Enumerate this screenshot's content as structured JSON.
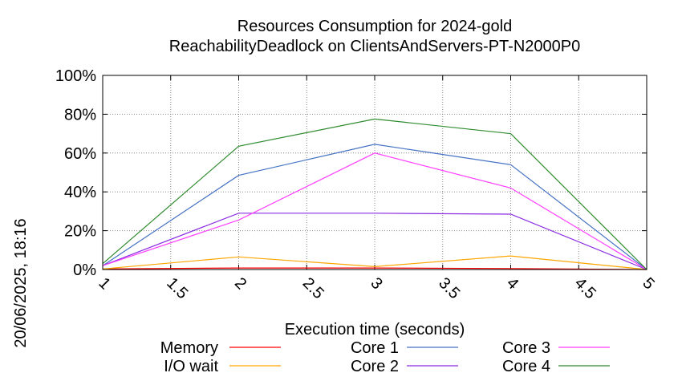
{
  "side_timestamp": "20/06/2025, 18:16",
  "chart_data": {
    "type": "line",
    "title": "Resources Consumption for 2024-gold",
    "subtitle": "ReachabilityDeadlock on ClientsAndServers-PT-N2000P0",
    "xlabel": "Execution time (seconds)",
    "ylabel": "",
    "xlim": [
      1,
      5
    ],
    "ylim": [
      0,
      100
    ],
    "x": [
      1,
      2,
      3,
      4,
      5
    ],
    "x_ticks": [
      "1",
      "1.5",
      "2",
      "2.5",
      "3",
      "3.5",
      "4",
      "4.5",
      "5"
    ],
    "y_ticks": [
      "0%",
      "20%",
      "40%",
      "60%",
      "80%",
      "100%"
    ],
    "grid": true,
    "legend_position": "bottom",
    "series": [
      {
        "name": "Memory",
        "color": "#ff0000",
        "values": [
          0.3,
          0.8,
          0.8,
          0.5,
          0.0
        ]
      },
      {
        "name": "I/O wait",
        "color": "#ffa500",
        "values": [
          0.3,
          6.5,
          1.5,
          7.0,
          0.0
        ]
      },
      {
        "name": "Core 1",
        "color": "#4472c4",
        "values": [
          2.0,
          48.5,
          64.5,
          54.0,
          0.0
        ]
      },
      {
        "name": "Core 2",
        "color": "#8a2be2",
        "values": [
          2.0,
          29.0,
          29.0,
          28.5,
          0.0
        ]
      },
      {
        "name": "Core 3",
        "color": "#ff3fff",
        "values": [
          2.0,
          25.5,
          60.0,
          42.0,
          0.0
        ]
      },
      {
        "name": "Core 4",
        "color": "#2e8b2e",
        "values": [
          3.0,
          63.5,
          77.5,
          70.0,
          0.0
        ]
      }
    ]
  }
}
